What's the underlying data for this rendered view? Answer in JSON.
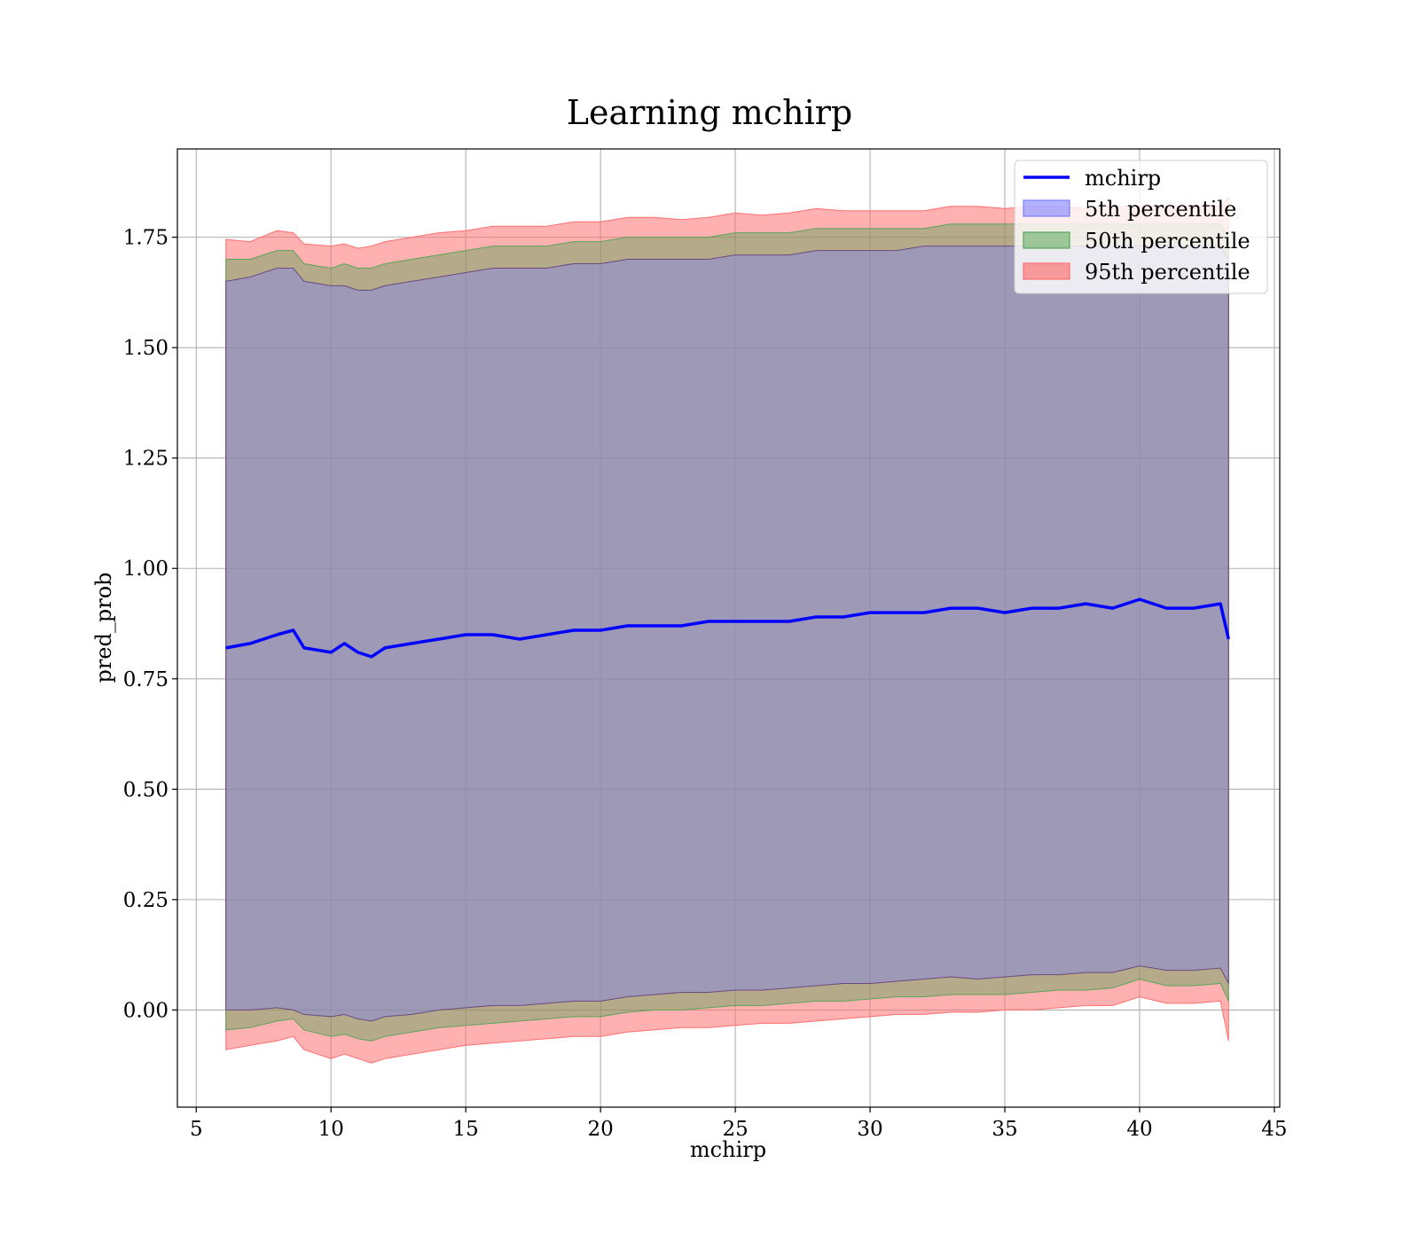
{
  "chart_data": {
    "type": "area",
    "title": "Learning mchirp",
    "xlabel": "mchirp",
    "ylabel": "pred_prob",
    "xlim": [
      4.3,
      45.2
    ],
    "ylim": [
      -0.22,
      1.95
    ],
    "xticks": [
      5,
      10,
      15,
      20,
      25,
      30,
      35,
      40,
      45
    ],
    "xtick_labels": [
      "5",
      "10",
      "15",
      "20",
      "25",
      "30",
      "35",
      "40",
      "45"
    ],
    "yticks": [
      0.0,
      0.25,
      0.5,
      0.75,
      1.0,
      1.25,
      1.5,
      1.75
    ],
    "ytick_labels": [
      "0.00",
      "0.25",
      "0.50",
      "0.75",
      "1.00",
      "1.25",
      "1.50",
      "1.75"
    ],
    "grid": true,
    "legend_position": "top-right",
    "colors": {
      "line": "#0000ff",
      "band_5": "#7f7fff",
      "band_50": "#5aa55a",
      "band_95": "#ff6f6f",
      "grid": "#b0b0b0"
    },
    "x": [
      6.1,
      7.0,
      8.0,
      8.6,
      9.0,
      10.0,
      10.5,
      11.0,
      11.5,
      12.0,
      13.0,
      14.0,
      15.0,
      16.0,
      17.0,
      18.0,
      19.0,
      20.0,
      21.0,
      22.0,
      23.0,
      24.0,
      25.0,
      26.0,
      27.0,
      28.0,
      29.0,
      30.0,
      31.0,
      32.0,
      33.0,
      34.0,
      35.0,
      36.0,
      37.0,
      38.0,
      39.0,
      40.0,
      41.0,
      42.0,
      43.0,
      43.3
    ],
    "series": [
      {
        "name": "mchirp",
        "type": "line",
        "values": [
          0.82,
          0.83,
          0.85,
          0.86,
          0.82,
          0.81,
          0.83,
          0.81,
          0.8,
          0.82,
          0.83,
          0.84,
          0.85,
          0.85,
          0.84,
          0.85,
          0.86,
          0.86,
          0.87,
          0.87,
          0.87,
          0.88,
          0.88,
          0.88,
          0.88,
          0.89,
          0.89,
          0.9,
          0.9,
          0.9,
          0.91,
          0.91,
          0.9,
          0.91,
          0.91,
          0.92,
          0.91,
          0.93,
          0.91,
          0.91,
          0.92,
          0.84
        ]
      },
      {
        "name": "5th percentile",
        "type": "band",
        "lower": [
          0.0,
          0.0,
          0.005,
          0.0,
          -0.01,
          -0.015,
          -0.01,
          -0.02,
          -0.025,
          -0.015,
          -0.01,
          0.0,
          0.005,
          0.01,
          0.01,
          0.015,
          0.02,
          0.02,
          0.03,
          0.035,
          0.04,
          0.04,
          0.045,
          0.045,
          0.05,
          0.055,
          0.06,
          0.06,
          0.065,
          0.07,
          0.075,
          0.07,
          0.075,
          0.08,
          0.08,
          0.085,
          0.085,
          0.1,
          0.09,
          0.09,
          0.095,
          0.06
        ],
        "upper": [
          1.65,
          1.66,
          1.68,
          1.68,
          1.65,
          1.64,
          1.64,
          1.63,
          1.63,
          1.64,
          1.65,
          1.66,
          1.67,
          1.68,
          1.68,
          1.68,
          1.69,
          1.69,
          1.7,
          1.7,
          1.7,
          1.7,
          1.71,
          1.71,
          1.71,
          1.72,
          1.72,
          1.72,
          1.72,
          1.73,
          1.73,
          1.73,
          1.73,
          1.73,
          1.73,
          1.73,
          1.73,
          1.73,
          1.73,
          1.73,
          1.73,
          1.7
        ]
      },
      {
        "name": "50th percentile",
        "type": "band",
        "lower": [
          -0.045,
          -0.04,
          -0.025,
          -0.02,
          -0.045,
          -0.06,
          -0.055,
          -0.065,
          -0.07,
          -0.06,
          -0.05,
          -0.04,
          -0.035,
          -0.03,
          -0.025,
          -0.02,
          -0.015,
          -0.015,
          -0.005,
          0.0,
          0.0,
          0.005,
          0.01,
          0.01,
          0.015,
          0.02,
          0.02,
          0.025,
          0.03,
          0.03,
          0.035,
          0.035,
          0.035,
          0.04,
          0.045,
          0.045,
          0.05,
          0.07,
          0.055,
          0.055,
          0.06,
          0.02
        ],
        "upper": [
          1.7,
          1.7,
          1.72,
          1.72,
          1.69,
          1.68,
          1.69,
          1.68,
          1.68,
          1.69,
          1.7,
          1.71,
          1.72,
          1.73,
          1.73,
          1.73,
          1.74,
          1.74,
          1.75,
          1.75,
          1.75,
          1.75,
          1.76,
          1.76,
          1.76,
          1.77,
          1.77,
          1.77,
          1.77,
          1.77,
          1.78,
          1.78,
          1.78,
          1.78,
          1.78,
          1.78,
          1.78,
          1.78,
          1.78,
          1.78,
          1.78,
          1.75
        ]
      },
      {
        "name": "95th percentile",
        "type": "band",
        "lower": [
          -0.09,
          -0.08,
          -0.07,
          -0.06,
          -0.09,
          -0.11,
          -0.1,
          -0.11,
          -0.12,
          -0.11,
          -0.1,
          -0.09,
          -0.08,
          -0.075,
          -0.07,
          -0.065,
          -0.06,
          -0.06,
          -0.05,
          -0.045,
          -0.04,
          -0.04,
          -0.035,
          -0.03,
          -0.03,
          -0.025,
          -0.02,
          -0.015,
          -0.01,
          -0.01,
          -0.005,
          -0.005,
          0.0,
          0.0,
          0.005,
          0.01,
          0.01,
          0.03,
          0.015,
          0.015,
          0.02,
          -0.07
        ]
      }
    ]
  }
}
